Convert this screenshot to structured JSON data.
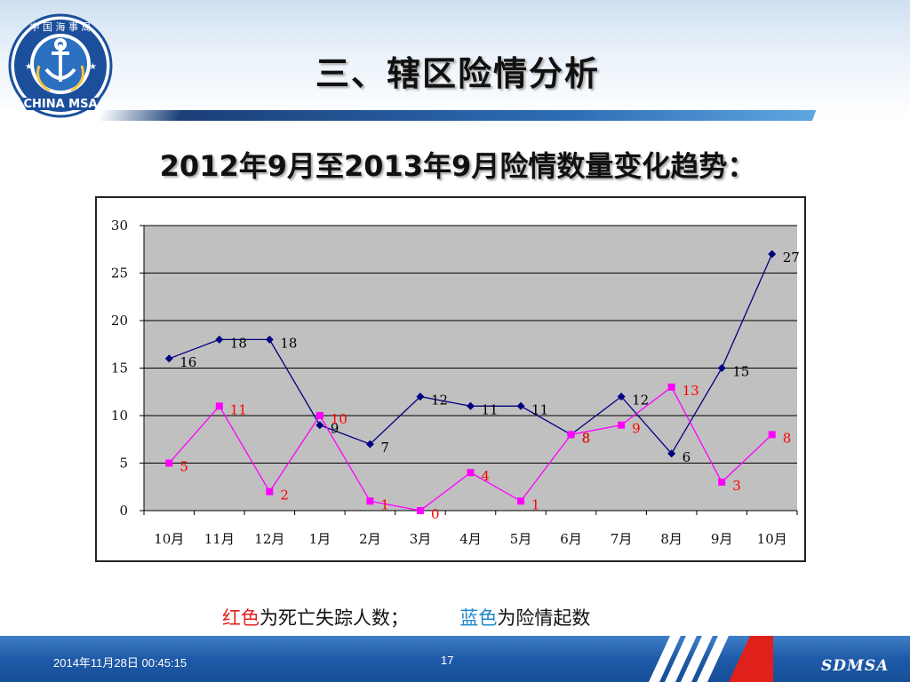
{
  "logo": {
    "org_text": "中 国 海 事 局",
    "brand_text": "CHINA MSA"
  },
  "slide": {
    "title": "三、辖区险情分析",
    "subtitle": "2012年9月至2013年9月险情数量变化趋势："
  },
  "legend_note": {
    "red_word": "红色",
    "red_text": "为死亡失踪人数；",
    "blue_word": "蓝色",
    "blue_text": "为险情起数"
  },
  "footer": {
    "datetime": "2014年11月28日  00:45:15",
    "page_number": "17",
    "brand": "SDMSA"
  },
  "colors": {
    "accent_red": "#e0201b",
    "accent_blue": "#1f86c9",
    "series_blue": "#000080",
    "series_magenta": "#ff00ff",
    "plot_bg": "#c0c0c0"
  },
  "chart_data": {
    "type": "line",
    "title": "",
    "xlabel": "",
    "ylabel": "",
    "categories": [
      "10月",
      "11月",
      "12月",
      "1月",
      "2月",
      "3月",
      "4月",
      "5月",
      "6月",
      "7月",
      "8月",
      "9月",
      "10月"
    ],
    "ylim": [
      0,
      30
    ],
    "yticks": [
      0,
      5,
      10,
      15,
      20,
      25,
      30
    ],
    "grid": true,
    "series": [
      {
        "marker": "diamond",
        "color": "#000080",
        "label_color": "#000000",
        "values": [
          16,
          18,
          18,
          9,
          7,
          12,
          11,
          11,
          8,
          12,
          6,
          15,
          27
        ]
      },
      {
        "marker": "square",
        "color": "#ff00ff",
        "label_color": "#ff0000",
        "values": [
          5,
          11,
          2,
          10,
          1,
          0,
          4,
          1,
          8,
          9,
          13,
          3,
          8
        ]
      }
    ]
  }
}
